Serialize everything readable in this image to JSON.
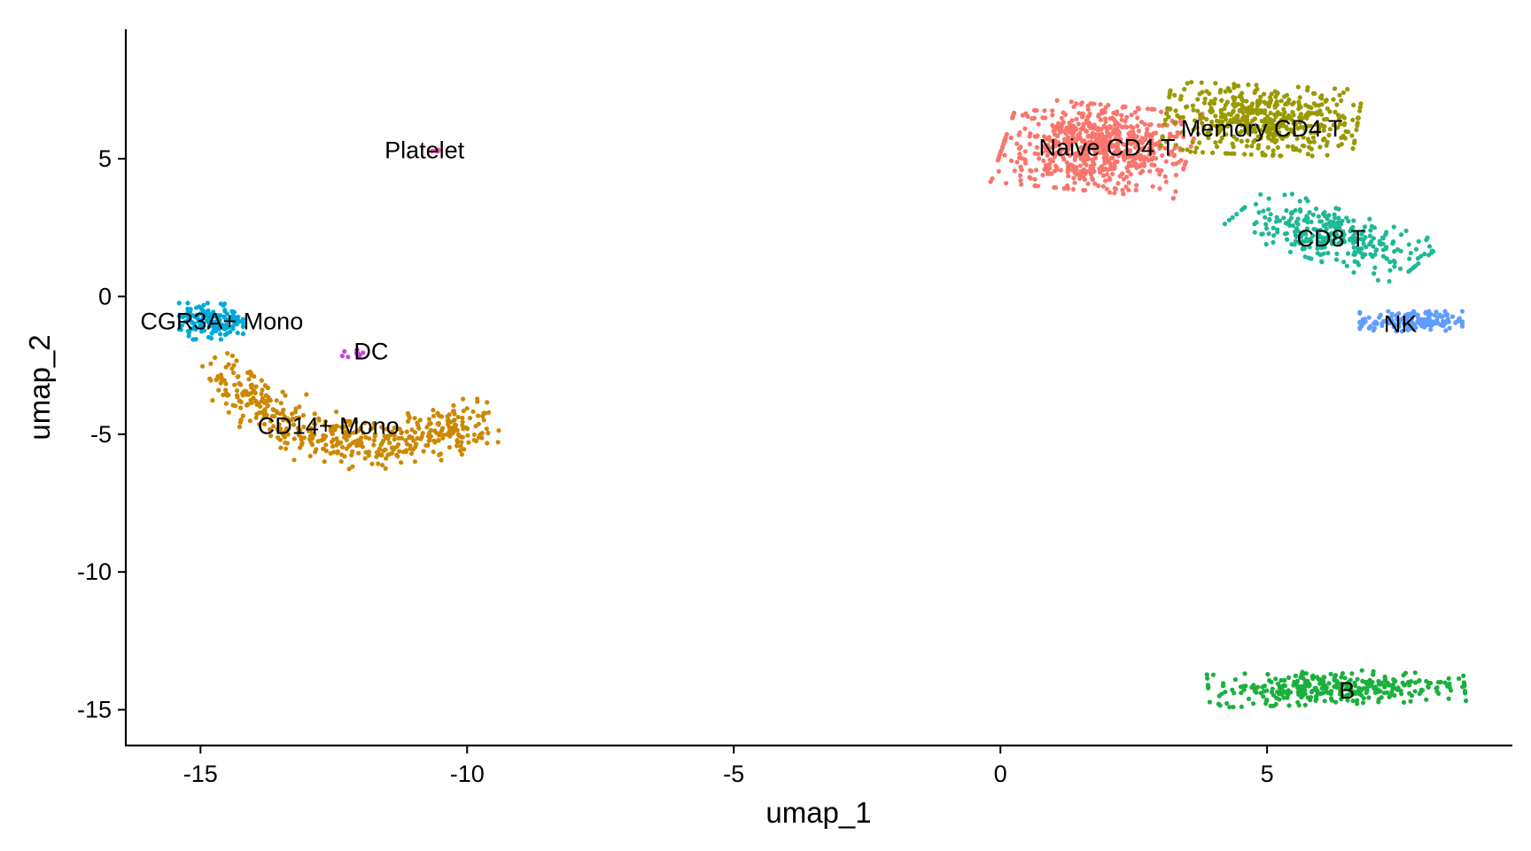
{
  "chart_data": {
    "type": "scatter",
    "title": "",
    "xlabel": "umap_1",
    "ylabel": "umap_2",
    "xlim": [
      -16.4,
      9.6
    ],
    "ylim": [
      -16.3,
      9.7
    ],
    "xticks": [
      -15,
      -10,
      -5,
      0,
      5
    ],
    "xtick_labels": [
      "-15",
      "-10",
      "-5",
      "0",
      "5"
    ],
    "yticks": [
      -15,
      -10,
      -5,
      0,
      5
    ],
    "ytick_labels": [
      "-15",
      "-10",
      "-5",
      "0",
      "5"
    ],
    "grid": false,
    "legend": "none",
    "point_size": "small",
    "clusters": [
      {
        "label": "Naive CD4 T",
        "color": "#F8766D",
        "label_position": [
          2.0,
          5.4
        ],
        "approx_points": 700,
        "region": {
          "center": [
            1.8,
            5.4
          ],
          "spread": [
            1.45,
            1.3
          ],
          "angle": -10
        }
      },
      {
        "label": "Memory CD4 T",
        "color": "#999900",
        "label_position": [
          4.9,
          6.1
        ],
        "approx_points": 500,
        "region": {
          "center": [
            4.9,
            6.4
          ],
          "spread": [
            1.5,
            1.05
          ],
          "angle": -5
        }
      },
      {
        "label": "CD8 T",
        "color": "#1FB896",
        "label_position": [
          6.2,
          2.1
        ],
        "approx_points": 300,
        "region": {
          "center": [
            6.2,
            2.2
          ],
          "spread": [
            1.6,
            0.75
          ],
          "angle": -32
        }
      },
      {
        "label": "NK",
        "color": "#619CFF",
        "label_position": [
          7.5,
          -1.0
        ],
        "approx_points": 160,
        "region": {
          "center": [
            7.7,
            -0.9
          ],
          "spread": [
            0.8,
            0.3
          ],
          "angle": 0
        }
      },
      {
        "label": "B",
        "color": "#1AB03E",
        "label_position": [
          6.5,
          -14.3
        ],
        "approx_points": 340,
        "region": {
          "center": [
            6.3,
            -14.2
          ],
          "spread": [
            2.0,
            0.5
          ],
          "angle": 3
        }
      },
      {
        "label": "CD14+ Mono",
        "color": "#CC8800",
        "label_position": [
          -12.6,
          -4.7
        ],
        "approx_points": 480,
        "region": {
          "arc": [
            [
              -14.5,
              -2.9
            ],
            [
              -13.9,
              -4.1
            ],
            [
              -12.8,
              -5.1
            ],
            [
              -11.5,
              -5.4
            ],
            [
              -10.5,
              -5.0
            ],
            [
              -9.8,
              -4.5
            ]
          ],
          "spread": 0.45
        }
      },
      {
        "label": "CGR3A+ Mono",
        "color": "#00A9D8",
        "label_position": [
          -14.6,
          -0.9
        ],
        "approx_points": 150,
        "region": {
          "center": [
            -14.8,
            -0.9
          ],
          "spread": [
            0.5,
            0.55
          ],
          "angle": 0
        }
      },
      {
        "label": "DC",
        "color": "#CC44E0",
        "label_position": [
          -11.8,
          -2.0
        ],
        "approx_points": 12,
        "region": {
          "center": [
            -12.1,
            -2.1
          ],
          "spread": [
            0.25,
            0.15
          ],
          "angle": 20
        }
      },
      {
        "label": "Platelet",
        "color": "#FF57B0",
        "label_position": [
          -10.8,
          5.3
        ],
        "approx_points": 4,
        "region": {
          "center": [
            -10.6,
            5.3
          ],
          "spread": [
            0.06,
            0.04
          ],
          "angle": 0
        }
      }
    ]
  }
}
